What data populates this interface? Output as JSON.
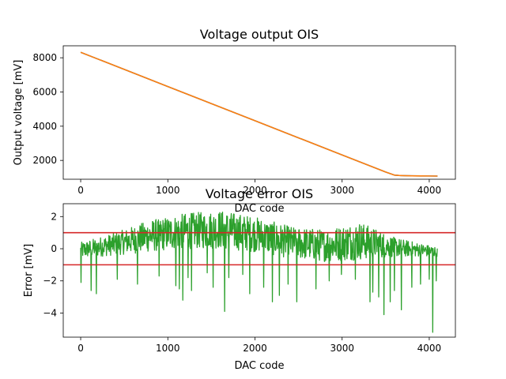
{
  "chart_data": [
    {
      "type": "line",
      "title": "Voltage output OIS",
      "xlabel": "DAC code",
      "ylabel": "Output voltage [mV]",
      "xlim": [
        -200,
        4300
      ],
      "ylim": [
        900,
        8700
      ],
      "xticks": [
        0,
        1000,
        2000,
        3000,
        4000
      ],
      "yticks": [
        2000,
        4000,
        6000,
        8000
      ],
      "series": [
        {
          "color": "#1f77b4",
          "x": [
            0,
            500,
            1000,
            1500,
            2000,
            2500,
            3000,
            3500,
            3600,
            3650,
            3700,
            3800,
            3900,
            4000,
            4095
          ],
          "y": [
            8320,
            7320,
            6320,
            5320,
            4320,
            3320,
            2320,
            1320,
            1140,
            1120,
            1110,
            1100,
            1095,
            1090,
            1085
          ]
        },
        {
          "color": "#ff7f0e",
          "x": [
            0,
            500,
            1000,
            1500,
            2000,
            2500,
            3000,
            3500,
            3600,
            3650,
            3700,
            3800,
            3900,
            4000,
            4095
          ],
          "y": [
            8320,
            7320,
            6320,
            5320,
            4320,
            3320,
            2320,
            1320,
            1140,
            1120,
            1110,
            1100,
            1095,
            1090,
            1085
          ]
        }
      ]
    },
    {
      "type": "line",
      "title": "Voltage error OIS",
      "xlabel": "DAC code",
      "ylabel": "Error [mV]",
      "xlim": [
        -200,
        4300
      ],
      "ylim": [
        -5.5,
        2.8
      ],
      "xticks": [
        0,
        1000,
        2000,
        3000,
        4000
      ],
      "yticks": [
        -4,
        -2,
        0,
        2
      ],
      "hlines": [
        {
          "y": 1,
          "color": "#d62728"
        },
        {
          "y": -1,
          "color": "#d62728"
        }
      ],
      "series": [
        {
          "color": "#2ca02c",
          "x_range": [
            0,
            4095
          ],
          "envelope": {
            "x": [
              0,
              400,
              800,
              1200,
              1600,
              2000,
              2400,
              2800,
              3200,
              3600,
              4095
            ],
            "mean": [
              -0.1,
              0.3,
              0.8,
              1.1,
              1.2,
              0.9,
              0.4,
              0.2,
              0.5,
              0.1,
              -0.2
            ],
            "amplitude": [
              0.5,
              0.7,
              1.0,
              1.1,
              1.2,
              1.1,
              1.0,
              1.0,
              1.2,
              0.6,
              0.3
            ]
          },
          "spikes": [
            {
              "x": 5,
              "y": -2.1
            },
            {
              "x": 120,
              "y": -2.6
            },
            {
              "x": 180,
              "y": -2.8
            },
            {
              "x": 420,
              "y": -1.9
            },
            {
              "x": 650,
              "y": -2.2
            },
            {
              "x": 900,
              "y": -1.7
            },
            {
              "x": 1090,
              "y": -2.3
            },
            {
              "x": 1130,
              "y": -2.5
            },
            {
              "x": 1170,
              "y": -3.2
            },
            {
              "x": 1230,
              "y": -1.8
            },
            {
              "x": 1270,
              "y": -2.6
            },
            {
              "x": 1450,
              "y": -1.5
            },
            {
              "x": 1520,
              "y": -2.4
            },
            {
              "x": 1650,
              "y": -3.9
            },
            {
              "x": 1700,
              "y": -1.8
            },
            {
              "x": 1860,
              "y": -1.6
            },
            {
              "x": 1940,
              "y": -2.8
            },
            {
              "x": 2100,
              "y": -2.4
            },
            {
              "x": 2200,
              "y": -3.3
            },
            {
              "x": 2280,
              "y": -2.9
            },
            {
              "x": 2380,
              "y": -2.2
            },
            {
              "x": 2480,
              "y": -3.3
            },
            {
              "x": 2700,
              "y": -2.5
            },
            {
              "x": 2850,
              "y": -2.0
            },
            {
              "x": 2990,
              "y": -1.6
            },
            {
              "x": 3150,
              "y": -1.9
            },
            {
              "x": 3320,
              "y": -3.3
            },
            {
              "x": 3350,
              "y": -2.7
            },
            {
              "x": 3420,
              "y": -3.0
            },
            {
              "x": 3480,
              "y": -4.1
            },
            {
              "x": 3550,
              "y": -3.3
            },
            {
              "x": 3600,
              "y": -2.6
            },
            {
              "x": 3680,
              "y": -3.8
            },
            {
              "x": 3800,
              "y": -2.4
            },
            {
              "x": 3900,
              "y": -2.2
            },
            {
              "x": 4000,
              "y": -1.9
            },
            {
              "x": 4040,
              "y": -5.2
            },
            {
              "x": 4080,
              "y": -2.0
            }
          ]
        }
      ]
    }
  ]
}
